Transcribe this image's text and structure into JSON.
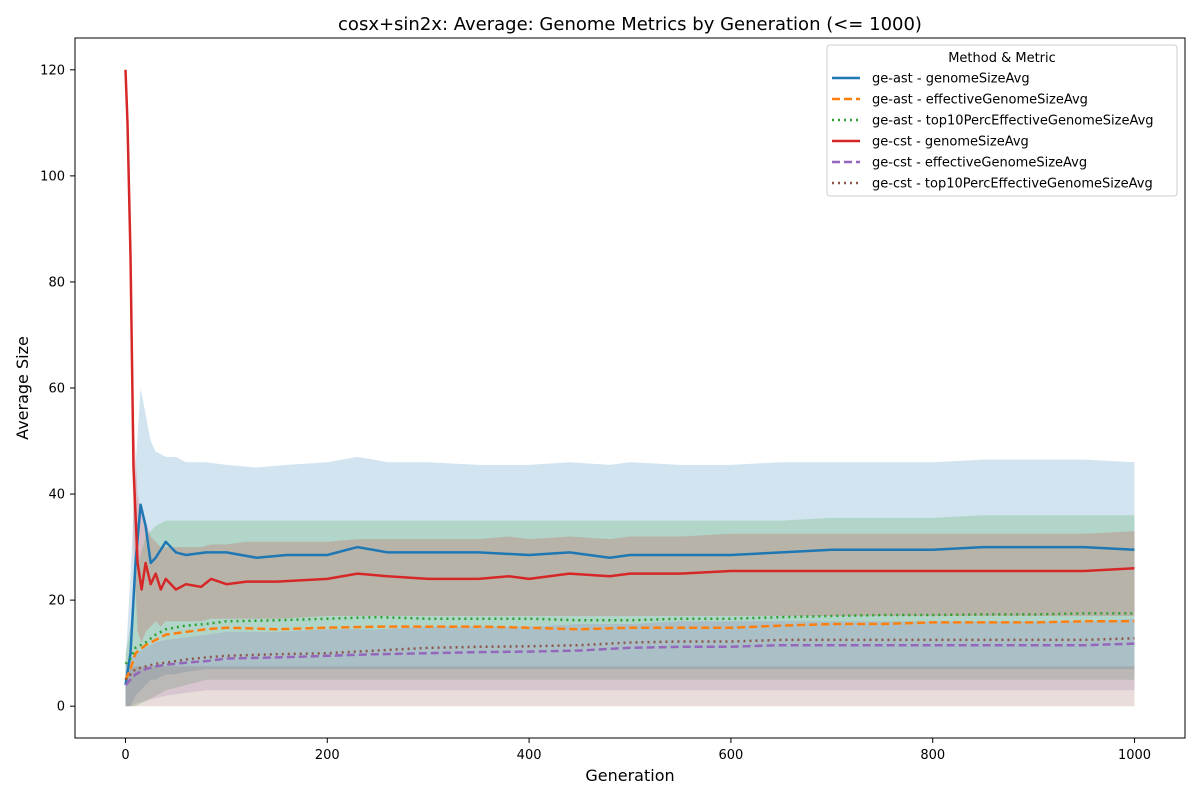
{
  "chart_data": {
    "type": "line",
    "title": "cosx+sin2x: Average: Genome Metrics by Generation (<= 1000)",
    "xlabel": "Generation",
    "ylabel": "Average Size",
    "xlim": [
      -50,
      1050
    ],
    "ylim": [
      -6,
      126
    ],
    "xticks": [
      0,
      200,
      400,
      600,
      800,
      1000
    ],
    "yticks": [
      0,
      20,
      40,
      60,
      80,
      100,
      120
    ],
    "grid": false,
    "legend": {
      "title": "Method & Metric",
      "placement": "top-right"
    },
    "series": [
      {
        "name": "ge-ast - genomeSizeAvg",
        "color": "#1f77b4",
        "dash": "solid",
        "x": [
          0,
          5,
          10,
          15,
          20,
          25,
          30,
          40,
          50,
          60,
          80,
          100,
          130,
          160,
          200,
          230,
          260,
          300,
          350,
          400,
          440,
          480,
          500,
          550,
          600,
          650,
          700,
          750,
          800,
          850,
          900,
          950,
          1000
        ],
        "y": [
          4,
          10,
          27,
          38,
          34,
          27,
          28,
          31,
          29,
          28.5,
          29,
          29,
          28,
          28.5,
          28.5,
          30,
          29,
          29,
          29,
          28.5,
          29,
          28,
          28.5,
          28.5,
          28.5,
          29,
          29.5,
          29.5,
          29.5,
          30,
          30,
          30,
          29.5
        ],
        "band_low": [
          0,
          0,
          2,
          3,
          4,
          5,
          5,
          6,
          6,
          6.5,
          7,
          7,
          7,
          7,
          7,
          7,
          7,
          7,
          7,
          7,
          7,
          7,
          7,
          7,
          7,
          7,
          7,
          7,
          7,
          7,
          7,
          7,
          7
        ],
        "band_high": [
          8,
          25,
          45,
          60,
          55,
          50,
          48,
          47,
          47,
          46,
          46,
          45.5,
          45,
          45.5,
          46,
          47,
          46,
          46,
          45.5,
          45.5,
          46,
          45.5,
          46,
          45.5,
          45.5,
          46,
          46,
          46,
          46,
          46.5,
          46.5,
          46.5,
          46
        ]
      },
      {
        "name": "ge-ast - effectiveGenomeSizeAvg",
        "color": "#ff7f0e",
        "dash": "dashed",
        "x": [
          0,
          5,
          10,
          20,
          30,
          40,
          60,
          80,
          100,
          150,
          200,
          250,
          300,
          350,
          400,
          450,
          500,
          550,
          600,
          650,
          700,
          750,
          800,
          850,
          900,
          950,
          1000
        ],
        "y": [
          5,
          7,
          10,
          11.5,
          12.5,
          13.5,
          14,
          14.5,
          14.8,
          14.5,
          14.8,
          15,
          15,
          15,
          14.8,
          14.5,
          14.8,
          14.8,
          14.8,
          15.2,
          15.5,
          15.5,
          15.8,
          15.8,
          15.8,
          16,
          16
        ]
      },
      {
        "name": "ge-ast - top10PercEffectiveGenomeSizeAvg",
        "color": "#2ca02c",
        "dash": "dotted",
        "x": [
          0,
          5,
          10,
          20,
          30,
          40,
          60,
          80,
          100,
          150,
          200,
          250,
          300,
          350,
          400,
          450,
          500,
          550,
          600,
          650,
          700,
          750,
          800,
          850,
          900,
          950,
          1000
        ],
        "y": [
          8,
          9,
          11,
          12,
          13.5,
          14.5,
          15.2,
          15.5,
          16,
          16.2,
          16.5,
          16.8,
          16.5,
          16.5,
          16.5,
          16.2,
          16.2,
          16.5,
          16.5,
          16.8,
          17,
          17.2,
          17.2,
          17.3,
          17.3,
          17.5,
          17.5
        ],
        "band_low": [
          0,
          0,
          0,
          1,
          2,
          3,
          4,
          5,
          5,
          5,
          5,
          5,
          5,
          5,
          5,
          5,
          5,
          5,
          5,
          5,
          5,
          5,
          5,
          5,
          5,
          5,
          5
        ],
        "band_high": [
          10,
          15,
          25,
          32,
          34,
          35,
          35,
          35,
          35,
          35,
          35,
          35,
          35,
          35,
          35,
          35,
          35,
          35,
          35,
          35,
          35.5,
          35.5,
          35.5,
          36,
          36,
          36,
          36
        ]
      },
      {
        "name": "ge-cst - genomeSizeAvg",
        "color": "#d62728",
        "dash": "solid",
        "x": [
          0,
          2,
          5,
          8,
          12,
          16,
          20,
          25,
          30,
          35,
          40,
          45,
          50,
          60,
          75,
          85,
          100,
          120,
          150,
          200,
          230,
          260,
          300,
          350,
          380,
          400,
          440,
          480,
          500,
          550,
          600,
          650,
          700,
          750,
          800,
          850,
          900,
          950,
          1000
        ],
        "y": [
          120,
          110,
          85,
          45,
          27,
          22,
          27,
          23,
          25,
          22,
          24,
          23,
          22,
          23,
          22.5,
          24,
          23,
          23.5,
          23.5,
          24,
          25,
          24.5,
          24,
          24,
          24.5,
          24,
          25,
          24.5,
          25,
          25,
          25.5,
          25.5,
          25.5,
          25.5,
          25.5,
          25.5,
          25.5,
          25.5,
          26
        ],
        "band_low": [
          120,
          105,
          80,
          30,
          14,
          12,
          14,
          15,
          16,
          15,
          16,
          16,
          16,
          16,
          16,
          16.5,
          16.5,
          16.5,
          16.5,
          17,
          17,
          17,
          17,
          17,
          17,
          17,
          17,
          17,
          17,
          17,
          17,
          17,
          17,
          17,
          17,
          17,
          17,
          17,
          17
        ],
        "band_high": [
          120,
          112,
          90,
          55,
          40,
          36,
          35,
          32,
          31,
          30,
          30,
          30,
          30,
          30,
          30,
          30.5,
          30.5,
          31,
          31,
          31,
          31.5,
          31.5,
          31.5,
          31.5,
          32,
          31.5,
          32,
          31.5,
          32,
          32,
          32.5,
          32.5,
          32.5,
          32.5,
          32.5,
          32.5,
          32.5,
          32.5,
          33
        ]
      },
      {
        "name": "ge-cst - effectiveGenomeSizeAvg",
        "color": "#9467bd",
        "dash": "dashed",
        "x": [
          0,
          5,
          10,
          20,
          30,
          40,
          60,
          80,
          100,
          150,
          200,
          250,
          300,
          350,
          400,
          450,
          500,
          550,
          600,
          650,
          700,
          750,
          800,
          850,
          900,
          950,
          1000
        ],
        "y": [
          4,
          5,
          6,
          7,
          7.5,
          7.8,
          8.2,
          8.5,
          9,
          9.2,
          9.5,
          9.8,
          10,
          10.2,
          10.3,
          10.5,
          11,
          11.2,
          11.2,
          11.5,
          11.5,
          11.5,
          11.5,
          11.5,
          11.5,
          11.5,
          11.8
        ],
        "band_low": [
          0,
          0,
          0.5,
          1,
          1.5,
          2,
          2.5,
          3,
          3,
          3,
          3,
          3,
          3,
          3,
          3,
          3,
          3,
          3,
          3,
          3,
          3,
          3,
          3,
          3,
          3,
          3,
          3
        ],
        "band_high": [
          8,
          9,
          10,
          11,
          12,
          12.5,
          13,
          13.5,
          14,
          14,
          14.5,
          14.5,
          15,
          15,
          15,
          15.5,
          15.5,
          16,
          16,
          16,
          16,
          16,
          16,
          16,
          16,
          16,
          16.5
        ]
      },
      {
        "name": "ge-cst - top10PercEffectiveGenomeSizeAvg",
        "color": "#8c564b",
        "dash": "dotted",
        "x": [
          0,
          5,
          10,
          20,
          30,
          40,
          60,
          80,
          100,
          150,
          200,
          250,
          300,
          350,
          400,
          450,
          500,
          550,
          600,
          650,
          700,
          750,
          800,
          850,
          900,
          950,
          1000
        ],
        "y": [
          5,
          6,
          7,
          7.5,
          8,
          8.2,
          8.8,
          9.2,
          9.5,
          9.8,
          10,
          10.5,
          11,
          11.2,
          11.3,
          11.5,
          12,
          12.2,
          12.2,
          12.5,
          12.5,
          12.5,
          12.5,
          12.5,
          12.5,
          12.5,
          12.8
        ],
        "band_low": [
          0,
          0,
          0,
          0,
          0,
          0,
          0,
          0,
          0,
          0,
          0,
          0,
          0,
          0,
          0,
          0,
          0,
          0,
          0,
          0,
          0,
          0,
          0,
          0,
          0,
          0,
          0
        ],
        "band_high": [
          6,
          7,
          7.5,
          7.5,
          7.5,
          7.5,
          7.5,
          7.5,
          7.5,
          7.5,
          7.5,
          7.5,
          7.5,
          7.5,
          7.5,
          7.5,
          7.5,
          7.5,
          7.5,
          7.5,
          7.5,
          7.5,
          7.5,
          7.5,
          7.5,
          7.5,
          7.5
        ]
      }
    ]
  }
}
